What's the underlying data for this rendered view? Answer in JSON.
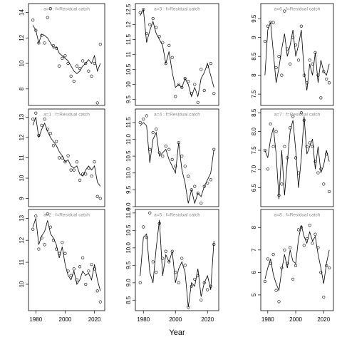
{
  "chart_data": [
    {
      "type": "scatter",
      "title": "a=0  :  f=Residual catch",
      "x": [
        1978,
        1980,
        1982,
        1984,
        1986,
        1988,
        1990,
        1992,
        1994,
        1996,
        1998,
        2000,
        2002,
        2004,
        2006,
        2008,
        2010,
        2012,
        2014,
        2016,
        2018,
        2020,
        2022,
        2024
      ],
      "xlim": [
        1975,
        2027
      ],
      "ylim": [
        6.7,
        14.7
      ],
      "yticks": [
        8,
        10,
        12,
        14
      ],
      "color": "#000000",
      "series": [
        {
          "style": "points",
          "values": [
            13.4,
            12.6,
            11.6,
            12.2,
            11.6,
            13.6,
            14.3,
            11.4,
            11.2,
            9.8,
            10.4,
            10.6,
            10.0,
            9.0,
            8.6,
            9.8,
            9.6,
            10.2,
            10.0,
            9.4,
            9.0,
            10.0,
            6.9,
            11.5
          ]
        },
        {
          "style": "line",
          "values": [
            13.0,
            12.6,
            11.6,
            12.3,
            12.2,
            12.0,
            11.6,
            11.2,
            11.3,
            10.8,
            10.6,
            10.4,
            10.2,
            9.8,
            9.4,
            9.2,
            9.4,
            9.8,
            10.0,
            10.3,
            10.0,
            10.6,
            9.4,
            10.0
          ]
        }
      ]
    },
    {
      "type": "scatter",
      "title": "a=3  :  f=Residual catch",
      "x": [
        1978,
        1980,
        1982,
        1984,
        1986,
        1988,
        1990,
        1992,
        1994,
        1996,
        1998,
        2000,
        2002,
        2004,
        2006,
        2008,
        2010,
        2012,
        2014,
        2016,
        2018,
        2020,
        2022,
        2024
      ],
      "xlim": [
        1975,
        2027
      ],
      "ylim": [
        9.3,
        12.7
      ],
      "yticks": [
        9.5,
        10,
        10.5,
        11,
        11.5,
        12,
        12.5
      ],
      "color": "#000000",
      "series": [
        {
          "style": "points",
          "values": [
            12.4,
            12.5,
            11.7,
            12.0,
            12.2,
            11.9,
            11.6,
            11.4,
            10.7,
            11.3,
            10.9,
            9.6,
            10.0,
            9.9,
            10.2,
            10.1,
            9.7,
            10.0,
            9.4,
            10.5,
            9.8,
            10.6,
            10.7,
            9.7
          ]
        },
        {
          "style": "line",
          "values": [
            12.3,
            12.5,
            11.4,
            11.8,
            12.1,
            11.7,
            11.5,
            11.3,
            10.7,
            11.1,
            10.4,
            9.9,
            10.0,
            9.9,
            10.2,
            10.0,
            9.6,
            9.9,
            9.6,
            10.2,
            10.4,
            10.7,
            10.3,
            9.9
          ]
        }
      ]
    },
    {
      "type": "scatter",
      "title": "a=6  :  f=Residual catch",
      "x": [
        1978,
        1980,
        1982,
        1984,
        1986,
        1988,
        1990,
        1992,
        1994,
        1996,
        1998,
        2000,
        2002,
        2004,
        2006,
        2008,
        2010,
        2012,
        2014,
        2016,
        2018,
        2020,
        2022,
        2024
      ],
      "xlim": [
        1975,
        2027
      ],
      "ylim": [
        7.2,
        9.9
      ],
      "yticks": [
        7.5,
        8,
        8.5,
        9,
        9.5
      ],
      "color": "#000000",
      "series": [
        {
          "style": "points",
          "values": [
            8.9,
            9.3,
            9.4,
            9.4,
            8.2,
            8.5,
            8.0,
            9.7,
            8.7,
            8.3,
            9.0,
            8.8,
            8.4,
            9.3,
            8.0,
            7.8,
            8.4,
            8.3,
            8.6,
            8.0,
            7.4,
            8.1,
            7.9,
            7.8
          ]
        },
        {
          "style": "line",
          "values": [
            8.0,
            9.2,
            9.4,
            8.6,
            7.8,
            8.2,
            8.7,
            9.1,
            8.5,
            8.8,
            9.2,
            8.5,
            8.8,
            9.2,
            8.1,
            7.6,
            8.3,
            8.0,
            8.6,
            7.8,
            8.4,
            8.1,
            8.0,
            8.3
          ]
        }
      ]
    },
    {
      "type": "scatter",
      "title": "a=1  :  f=Residual catch",
      "x": [
        1978,
        1980,
        1982,
        1984,
        1986,
        1988,
        1990,
        1992,
        1994,
        1996,
        1998,
        2000,
        2002,
        2004,
        2006,
        2008,
        2010,
        2012,
        2014,
        2016,
        2018,
        2020,
        2022,
        2024
      ],
      "xlim": [
        1975,
        2027
      ],
      "ylim": [
        8.6,
        13.4
      ],
      "yticks": [
        9,
        10,
        11,
        12,
        13
      ],
      "color": "#000000",
      "series": [
        {
          "style": "points",
          "values": [
            12.9,
            13.2,
            12.1,
            12.6,
            12.9,
            12.4,
            12.2,
            11.6,
            11.8,
            11.0,
            11.0,
            10.8,
            11.1,
            10.4,
            10.4,
            10.8,
            9.9,
            10.2,
            10.2,
            10.5,
            10.1,
            10.8,
            9.1,
            9.0
          ]
        },
        {
          "style": "line",
          "values": [
            12.6,
            13.0,
            12.0,
            12.4,
            12.7,
            12.3,
            12.0,
            11.8,
            11.6,
            11.3,
            11.1,
            10.8,
            10.9,
            10.6,
            10.5,
            10.6,
            10.2,
            10.1,
            10.4,
            10.6,
            10.4,
            10.6,
            9.8,
            9.6
          ]
        }
      ]
    },
    {
      "type": "scatter",
      "title": "a=4  :  f=Residual catch",
      "x": [
        1978,
        1980,
        1982,
        1984,
        1986,
        1988,
        1990,
        1992,
        1994,
        1996,
        1998,
        2000,
        2002,
        2004,
        2006,
        2008,
        2010,
        2012,
        2014,
        2016,
        2018,
        2020,
        2022,
        2024
      ],
      "xlim": [
        1975,
        2027
      ],
      "ylim": [
        9.0,
        11.9
      ],
      "yticks": [
        {
          "value": 9,
          "label": "9.0"
        },
        9.5,
        {
          "value": 10,
          "label": "10.0"
        },
        10.5,
        {
          "value": 11,
          "label": "11.0"
        },
        11.5
      ],
      "color": "#000000",
      "series": [
        {
          "style": "points",
          "values": [
            11.5,
            11.6,
            11.7,
            10.7,
            11.2,
            11.3,
            10.6,
            10.5,
            10.8,
            10.7,
            10.4,
            10.2,
            10.9,
            10.5,
            10.2,
            9.9,
            9.5,
            9.6,
            9.4,
            9.1,
            9.6,
            9.7,
            9.8,
            10.7
          ]
        },
        {
          "style": "line",
          "values": [
            11.4,
            11.5,
            11.4,
            10.3,
            11.0,
            11.2,
            10.5,
            10.6,
            10.7,
            10.4,
            10.2,
            10.0,
            10.9,
            10.1,
            9.7,
            9.1,
            9.5,
            9.1,
            9.4,
            9.3,
            9.6,
            9.8,
            10.0,
            10.7
          ]
        }
      ]
    },
    {
      "type": "scatter",
      "title": "a=7  :  f=Residual catch",
      "x": [
        1978,
        1980,
        1982,
        1984,
        1986,
        1988,
        1990,
        1992,
        1994,
        1996,
        1998,
        2000,
        2002,
        2004,
        2006,
        2008,
        2010,
        2012,
        2014,
        2016,
        2018,
        2020,
        2022,
        2024
      ],
      "xlim": [
        1975,
        2027
      ],
      "ylim": [
        6.0,
        8.6
      ],
      "yticks": [
        6.5,
        {
          "value": 7,
          "label": "7.0"
        },
        7.5,
        {
          "value": 8,
          "label": "8.0"
        },
        8.5
      ],
      "color": "#000000",
      "series": [
        {
          "style": "points",
          "values": [
            7.5,
            7.0,
            8.2,
            7.6,
            8.0,
            6.3,
            6.6,
            7.6,
            7.3,
            8.1,
            8.4,
            7.3,
            6.9,
            8.5,
            8.3,
            7.6,
            7.7,
            7.6,
            7.2,
            6.9,
            7.0,
            6.6,
            7.4,
            6.4
          ]
        },
        {
          "style": "line",
          "values": [
            7.5,
            7.3,
            7.8,
            8.1,
            7.4,
            6.2,
            7.5,
            6.3,
            7.2,
            8.0,
            8.3,
            7.5,
            6.5,
            7.3,
            8.4,
            7.4,
            7.6,
            7.8,
            7.0,
            7.6,
            6.9,
            7.1,
            7.5,
            7.2
          ]
        }
      ]
    },
    {
      "type": "scatter",
      "title": "a=2  :  f=Residual catch",
      "x": [
        1978,
        1980,
        1982,
        1984,
        1986,
        1988,
        1990,
        1992,
        1994,
        1996,
        1998,
        2000,
        2002,
        2004,
        2006,
        2008,
        2010,
        2012,
        2014,
        2016,
        2018,
        2020,
        2022,
        2024
      ],
      "xlim": [
        1975,
        2027
      ],
      "xticks": [
        1980,
        2000,
        2020
      ],
      "ylim": [
        8.8,
        13.4
      ],
      "yticks": [
        10,
        11,
        12,
        13
      ],
      "color": "#000000",
      "series": [
        {
          "style": "points",
          "values": [
            12.5,
            13.1,
            11.6,
            12.1,
            11.8,
            13.2,
            12.6,
            12.0,
            11.6,
            11.4,
            11.9,
            11.4,
            10.6,
            10.4,
            10.7,
            10.2,
            10.8,
            11.2,
            10.0,
            10.6,
            10.9,
            10.7,
            9.7,
            9.2
          ]
        },
        {
          "style": "line",
          "values": [
            12.6,
            13.0,
            11.8,
            12.2,
            12.4,
            12.9,
            12.3,
            12.1,
            11.8,
            11.2,
            11.7,
            10.9,
            10.4,
            10.2,
            10.6,
            10.0,
            10.2,
            10.6,
            10.4,
            10.5,
            10.2,
            10.9,
            10.2,
            9.7
          ]
        }
      ]
    },
    {
      "type": "scatter",
      "title": "a=5  :  f=Residual catch",
      "xlabel": "Year",
      "x": [
        1978,
        1980,
        1982,
        1984,
        1986,
        1988,
        1990,
        1992,
        1994,
        1996,
        1998,
        2000,
        2002,
        2004,
        2006,
        2008,
        2010,
        2012,
        2014,
        2016,
        2018,
        2020,
        2022,
        2024
      ],
      "xlim": [
        1975,
        2027
      ],
      "xticks": [
        1980,
        2000,
        2020
      ],
      "ylim": [
        8.2,
        11.1
      ],
      "yticks": [
        8.5,
        {
          "value": 9,
          "label": "9.0"
        },
        9.5,
        {
          "value": 10,
          "label": "10.0"
        },
        10.5,
        {
          "value": 11,
          "label": "11.0"
        }
      ],
      "color": "#000000",
      "series": [
        {
          "style": "points",
          "values": [
            9.0,
            10.6,
            10.3,
            11.0,
            9.6,
            9.3,
            10.7,
            9.7,
            9.9,
            9.6,
            9.9,
            9.3,
            9.0,
            9.7,
            9.5,
            8.3,
            8.9,
            9.1,
            9.2,
            8.5,
            9.0,
            8.8,
            8.9,
            10.1
          ]
        },
        {
          "style": "line",
          "values": [
            9.2,
            10.3,
            10.4,
            9.3,
            9.0,
            10.0,
            10.8,
            9.2,
            9.8,
            9.6,
            9.9,
            9.0,
            9.4,
            9.6,
            9.3,
            8.3,
            9.0,
            8.9,
            9.4,
            8.6,
            9.0,
            9.2,
            8.8,
            10.2
          ]
        }
      ]
    },
    {
      "type": "scatter",
      "title": "a=8  :  f=Residual catch",
      "x": [
        1978,
        1980,
        1982,
        1984,
        1986,
        1988,
        1990,
        1992,
        1994,
        1996,
        1998,
        2000,
        2002,
        2004,
        2006,
        2008,
        2010,
        2012,
        2014,
        2016,
        2018,
        2020,
        2022,
        2024
      ],
      "xlim": [
        1975,
        2027
      ],
      "xticks": [
        1980,
        2000,
        2020
      ],
      "ylim": [
        4.3,
        8.8
      ],
      "yticks": [
        5,
        6,
        7,
        8
      ],
      "color": "#000000",
      "series": [
        {
          "style": "points",
          "values": [
            5.6,
            6.6,
            6.4,
            6.8,
            5.2,
            4.7,
            6.2,
            7.0,
            6.4,
            7.1,
            5.7,
            6.3,
            7.9,
            8.0,
            7.2,
            7.5,
            8.1,
            7.3,
            7.7,
            7.1,
            6.0,
            4.9,
            6.3,
            6.2
          ]
        },
        {
          "style": "line",
          "values": [
            5.7,
            6.2,
            6.6,
            5.9,
            5.5,
            5.2,
            6.1,
            6.8,
            6.2,
            7.0,
            6.5,
            6.4,
            7.5,
            8.1,
            7.6,
            7.3,
            7.8,
            7.4,
            7.6,
            6.8,
            6.2,
            5.5,
            6.4,
            7.0
          ]
        }
      ]
    }
  ]
}
